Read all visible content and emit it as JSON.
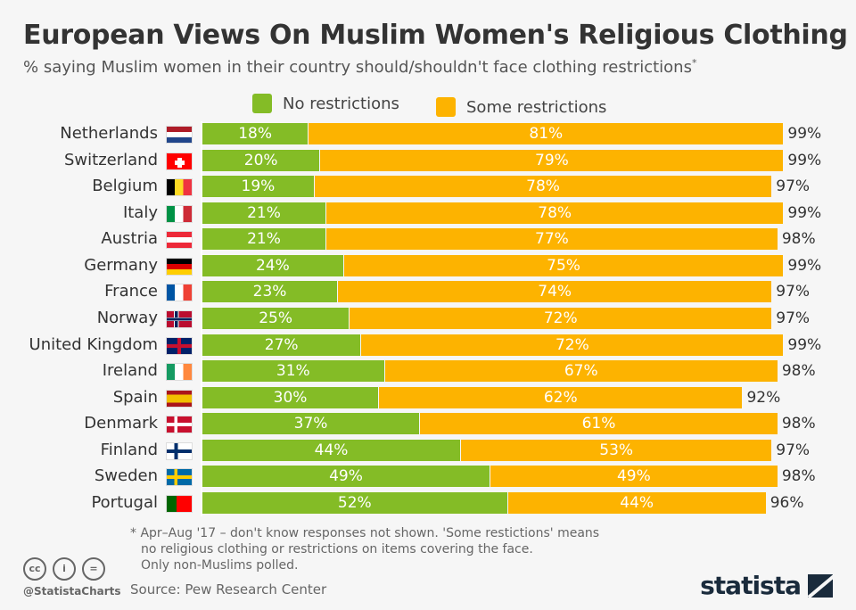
{
  "title": "European Views On Muslim Women's Religious Clothing",
  "subtitle": "% saying Muslim women in their country should/shouldn't face clothing restrictions",
  "subtitle_mark": "*",
  "colors": {
    "no": "#84bc26",
    "some": "#fdb300"
  },
  "chart_data": {
    "type": "bar",
    "orientation": "horizontal",
    "stacked": true,
    "categories": [
      "Netherlands",
      "Switzerland",
      "Belgium",
      "Italy",
      "Austria",
      "Germany",
      "France",
      "Norway",
      "United Kingdom",
      "Ireland",
      "Spain",
      "Denmark",
      "Finland",
      "Sweden",
      "Portugal"
    ],
    "series": [
      {
        "name": "No restrictions",
        "values": [
          18,
          20,
          19,
          21,
          21,
          24,
          23,
          25,
          27,
          31,
          30,
          37,
          44,
          49,
          52
        ]
      },
      {
        "name": "Some restrictions",
        "values": [
          81,
          79,
          78,
          78,
          77,
          75,
          74,
          72,
          72,
          67,
          62,
          61,
          53,
          49,
          44
        ]
      }
    ],
    "totals": [
      99,
      99,
      97,
      99,
      98,
      99,
      97,
      97,
      99,
      98,
      92,
      98,
      97,
      98,
      96
    ],
    "legend": "top",
    "xlim": [
      0,
      100
    ]
  },
  "footer": {
    "note": [
      "* Apr–Aug '17 – don't know responses not shown. 'Some restictions' means",
      "no religious clothing or restrictions on items covering the face.",
      "Only non-Muslims polled."
    ],
    "source": "Source: Pew Research Center",
    "handle": "@StatistaCharts",
    "cc": [
      "cc",
      "i",
      "="
    ],
    "logo": "statista"
  }
}
